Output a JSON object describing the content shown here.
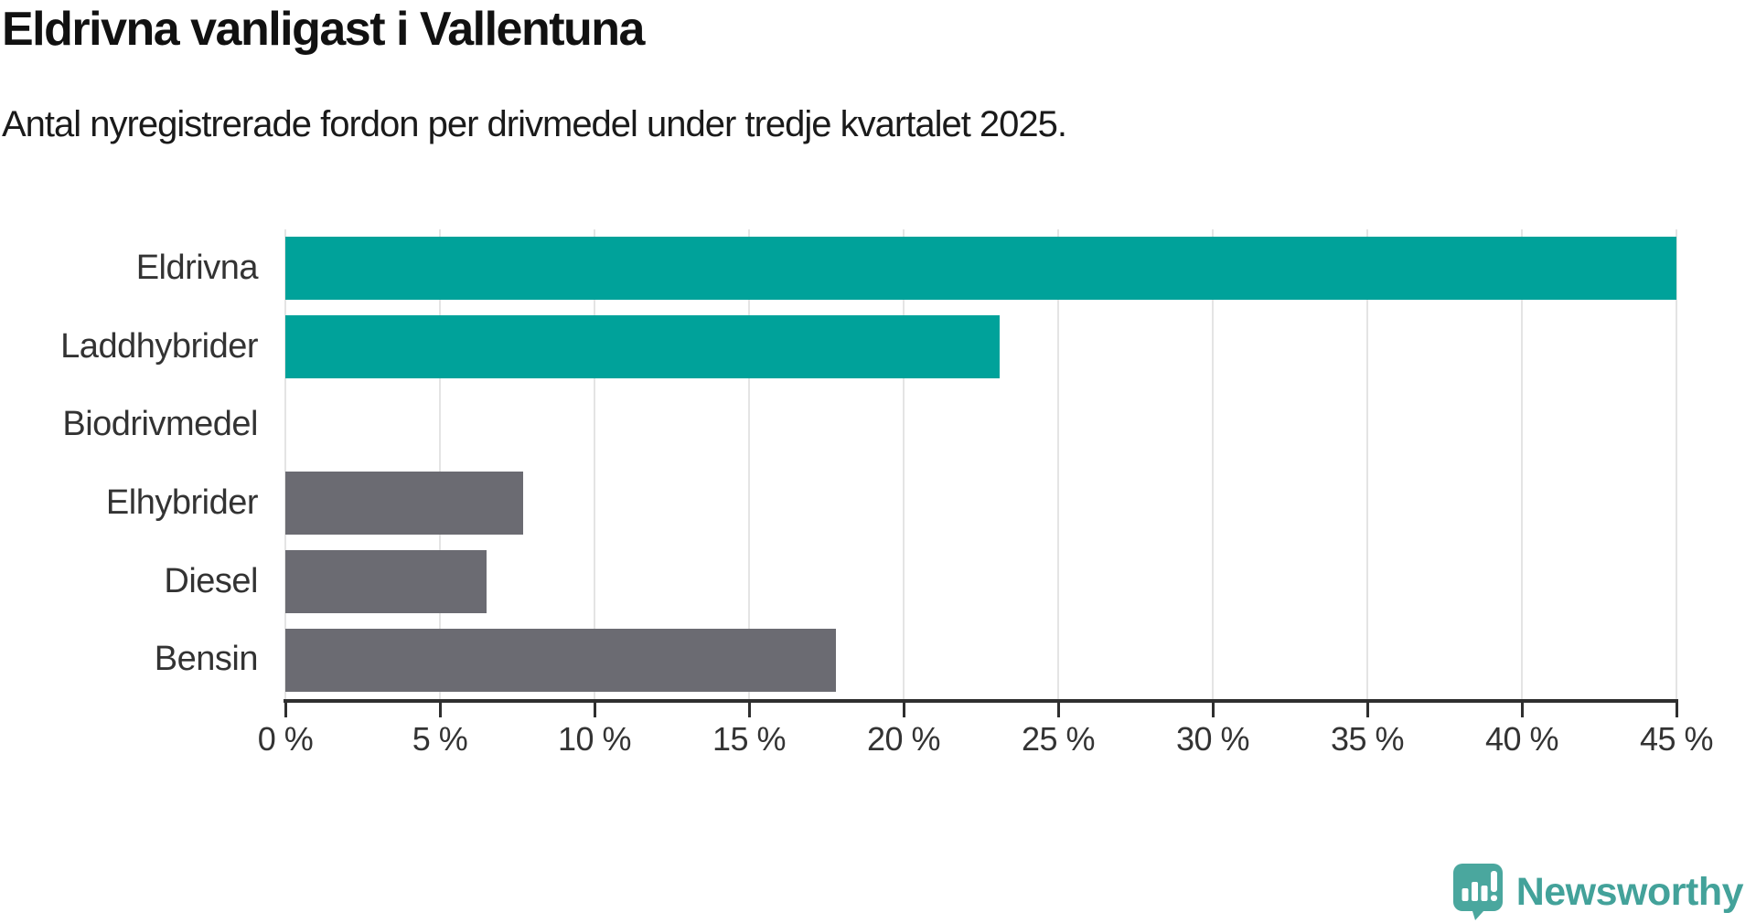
{
  "chart_data": {
    "type": "bar",
    "orientation": "horizontal",
    "title": "Eldrivna vanligast i Vallentuna",
    "subtitle": "Antal nyregistrerade fordon per drivmedel under tredje kvartalet 2025.",
    "categories": [
      "Eldrivna",
      "Laddhybrider",
      "Biodrivmedel",
      "Elhybrider",
      "Diesel",
      "Bensin"
    ],
    "values": [
      45.0,
      23.1,
      0.0,
      7.7,
      6.5,
      17.8
    ],
    "unit": "%",
    "bar_colors": [
      "#00a29a",
      "#00a29a",
      "#00a29a",
      "#6b6b72",
      "#6b6b72",
      "#6b6b72"
    ],
    "xlim": [
      0,
      45
    ],
    "x_ticks": [
      0,
      5,
      10,
      15,
      20,
      25,
      30,
      35,
      40,
      45
    ],
    "x_tick_labels": [
      "0 %",
      "5 %",
      "10 %",
      "15 %",
      "20 %",
      "25 %",
      "30 %",
      "35 %",
      "40 %",
      "45 %"
    ],
    "xlabel": "",
    "ylabel": "",
    "grid": "vertical-only",
    "legend": "none"
  },
  "style": {
    "accent_color": "#00a29a",
    "neutral_color": "#6b6b72",
    "grid_color": "#e4e4e4",
    "axis_color": "#2f2f2f",
    "label_color": "#333333"
  },
  "branding": {
    "logo_text": "Newsworthy",
    "logo_color": "#43a29a",
    "logo_bubble_color": "#4aa79e"
  }
}
